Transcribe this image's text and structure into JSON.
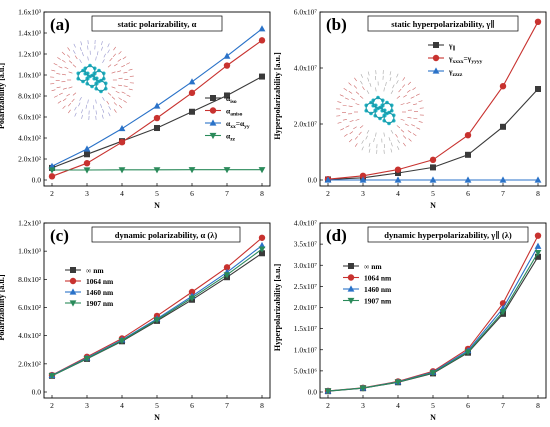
{
  "chart_data": [
    {
      "type": "line",
      "panel_label": "(a)",
      "title": "static polarizability, α",
      "xlabel": "N",
      "ylabel": "Polarizability [a.u.]",
      "x": [
        2,
        3,
        4,
        5,
        6,
        7,
        8
      ],
      "xlim": [
        2,
        8
      ],
      "ylim": [
        0,
        1600
      ],
      "yticks": [
        0,
        200,
        400,
        600,
        800,
        1000,
        1200,
        1400,
        1600
      ],
      "ytick_labels": [
        "0.0",
        "2.0x10²",
        "4.0x10²",
        "6.0x10²",
        "8.0x10²",
        "1.0x10³",
        "1.2x10³",
        "1.4x10³",
        "1.6x10³"
      ],
      "xtick_labels": [
        "2",
        "3",
        "4",
        "5",
        "6",
        "7",
        "8"
      ],
      "legend": "right",
      "series": [
        {
          "name": "α_iso",
          "name_main": "α",
          "name_sub": "iso",
          "color": "#3a3a3a",
          "marker": "square",
          "values": [
            115,
            245,
            370,
            495,
            650,
            805,
            985
          ]
        },
        {
          "name": "α_aniso",
          "name_main": "α",
          "name_sub": "aniso",
          "color": "#c8322f",
          "marker": "circle",
          "values": [
            35,
            160,
            360,
            590,
            830,
            1090,
            1330
          ]
        },
        {
          "name": "α_xx=α_yy",
          "name_main": "α",
          "name_sub": "xx",
          "name_mid": "=α",
          "name_sub2": "yy",
          "color": "#2a72c8",
          "marker": "triangle-up",
          "values": [
            130,
            295,
            490,
            705,
            935,
            1180,
            1440
          ]
        },
        {
          "name": "α_zz",
          "name_main": "α",
          "name_sub": "zz",
          "color": "#2a8a5a",
          "marker": "triangle-down",
          "values": [
            95,
            95,
            97,
            97,
            98,
            98,
            98
          ]
        }
      ]
    },
    {
      "type": "line",
      "panel_label": "(b)",
      "title": "static hyperpolarizability, γ∥",
      "xlabel": "N",
      "ylabel": "Hyperpolarizability [a.u.]",
      "x": [
        2,
        3,
        4,
        5,
        6,
        7,
        8
      ],
      "xlim": [
        2,
        8
      ],
      "ylim": [
        0,
        60000000
      ],
      "yticks": [
        0,
        20000000,
        40000000,
        60000000
      ],
      "ytick_labels": [
        "0.0",
        "2.0x10⁷",
        "4.0x10⁷",
        "6.0x10⁷"
      ],
      "xtick_labels": [
        "2",
        "3",
        "4",
        "5",
        "6",
        "7",
        "8"
      ],
      "legend": "top-right",
      "series": [
        {
          "name": "γ∥",
          "name_main": "γ",
          "name_sub": "∥",
          "color": "#3a3a3a",
          "marker": "square",
          "values": [
            200000,
            800000,
            2500000,
            4500000,
            9000000,
            19000000,
            32500000
          ]
        },
        {
          "name": "γ_xxxx=γ_yyyy",
          "name_main": "γ",
          "name_sub": "xxxx",
          "name_mid": "=γ",
          "name_sub2": "yyyy",
          "color": "#c8322f",
          "marker": "circle",
          "values": [
            300000,
            1500000,
            3700000,
            7200000,
            16000000,
            33500000,
            56500000
          ]
        },
        {
          "name": "γ_zzzz",
          "name_main": "γ",
          "name_sub": "zzzz",
          "color": "#2a72c8",
          "marker": "triangle-up",
          "values": [
            0,
            0,
            0,
            0,
            0,
            0,
            0
          ]
        }
      ]
    },
    {
      "type": "line",
      "panel_label": "(c)",
      "title": "dynamic polarizability, α (λ)",
      "xlabel": "N",
      "ylabel": "Polarizability [a.u.]",
      "x": [
        2,
        3,
        4,
        5,
        6,
        7,
        8
      ],
      "xlim": [
        2,
        8
      ],
      "ylim": [
        0,
        1200
      ],
      "yticks": [
        0,
        200,
        400,
        600,
        800,
        1000,
        1200
      ],
      "ytick_labels": [
        "0.0",
        "2.0x10²",
        "4.0x10²",
        "6.0x10²",
        "8.0x10²",
        "1.0x10³",
        "1.2x10³"
      ],
      "xtick_labels": [
        "2",
        "3",
        "4",
        "5",
        "6",
        "7",
        "8"
      ],
      "legend": "top-left",
      "series": [
        {
          "name": "∞ nm",
          "color": "#3a3a3a",
          "marker": "square",
          "values": [
            115,
            235,
            360,
            505,
            655,
            815,
            985
          ]
        },
        {
          "name": "1064 nm",
          "color": "#c8322f",
          "marker": "circle",
          "values": [
            120,
            250,
            380,
            540,
            710,
            885,
            1095
          ]
        },
        {
          "name": "1460 nm",
          "color": "#2a72c8",
          "marker": "triangle-up",
          "values": [
            118,
            242,
            370,
            520,
            680,
            850,
            1040
          ]
        },
        {
          "name": "1907 nm",
          "color": "#2a8a5a",
          "marker": "triangle-down",
          "values": [
            116,
            238,
            365,
            512,
            668,
            832,
            1015
          ]
        }
      ]
    },
    {
      "type": "line",
      "panel_label": "(d)",
      "title": "dynamic hyperpolarizability, γ∥ (λ)",
      "xlabel": "N",
      "ylabel": "Hyperpolarizability [a.u.]",
      "x": [
        2,
        3,
        4,
        5,
        6,
        7,
        8
      ],
      "xlim": [
        2,
        8
      ],
      "ylim": [
        0,
        40000000
      ],
      "yticks": [
        0,
        5000000,
        10000000,
        15000000,
        20000000,
        25000000,
        30000000,
        35000000,
        40000000
      ],
      "ytick_labels": [
        "0.0",
        "5.0x10⁶",
        "1.0x10⁷",
        "1.5x10⁷",
        "2.0x10⁷",
        "2.5x10⁷",
        "3.0x10⁷",
        "3.5x10⁷",
        "4.0x10⁷"
      ],
      "xtick_labels": [
        "2",
        "3",
        "4",
        "5",
        "6",
        "7",
        "8"
      ],
      "legend": "top-left",
      "series": [
        {
          "name": "∞ nm",
          "color": "#3a3a3a",
          "marker": "square",
          "values": [
            200000,
            900000,
            2300000,
            4400000,
            9300000,
            18500000,
            32000000
          ]
        },
        {
          "name": "1064 nm",
          "color": "#c8322f",
          "marker": "circle",
          "values": [
            250000,
            1000000,
            2500000,
            4900000,
            10200000,
            21000000,
            37000000
          ]
        },
        {
          "name": "1460 nm",
          "color": "#2a72c8",
          "marker": "triangle-up",
          "values": [
            230000,
            950000,
            2400000,
            4700000,
            9800000,
            19800000,
            34500000
          ]
        },
        {
          "name": "1907 nm",
          "color": "#2a8a5a",
          "marker": "triangle-down",
          "values": [
            220000,
            920000,
            2350000,
            4550000,
            9500000,
            19000000,
            33000000
          ]
        }
      ]
    }
  ],
  "insets": [
    {
      "panel": "(a)",
      "description_icon": "molecule-sphere-icon",
      "colors": {
        "arrow_inner": "#c04040",
        "arrow_outer": "#7a7ac0",
        "atoms": "#20b8c8"
      }
    },
    {
      "panel": "(b)",
      "description_icon": "molecule-sphere-icon",
      "colors": {
        "arrow_inner": "#c04040",
        "arrow_outer": "#909090",
        "atoms": "#20b8c8"
      }
    }
  ]
}
